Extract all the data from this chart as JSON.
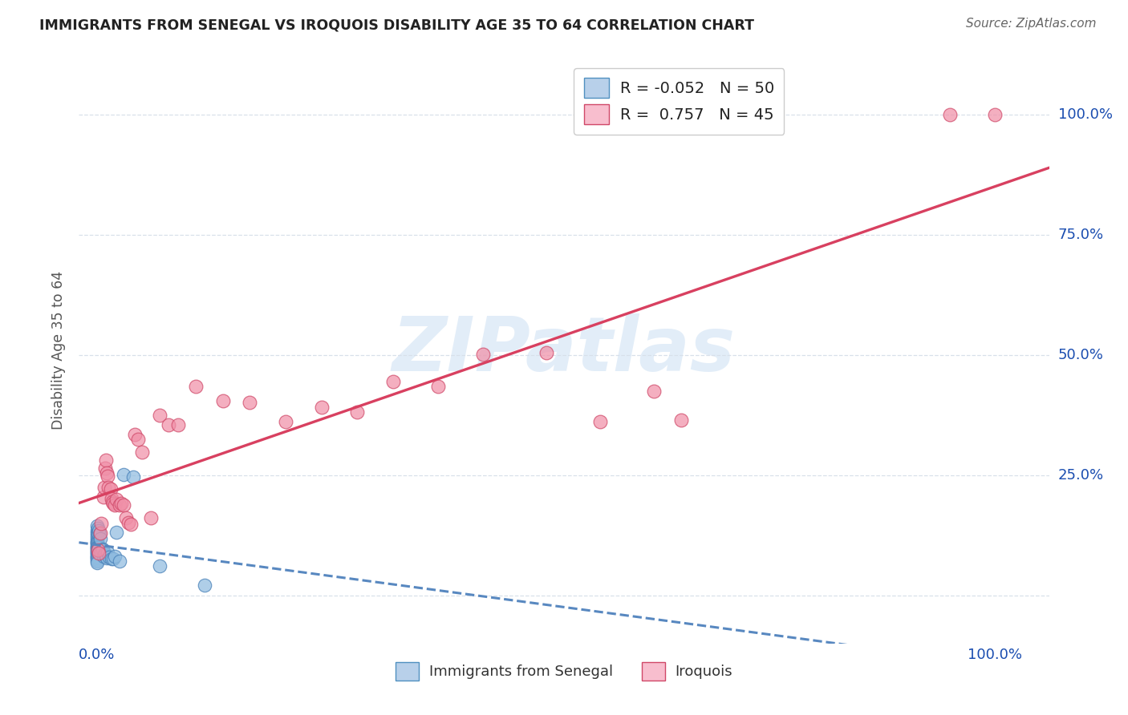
{
  "title": "IMMIGRANTS FROM SENEGAL VS IROQUOIS DISABILITY AGE 35 TO 64 CORRELATION CHART",
  "source": "Source: ZipAtlas.com",
  "ylabel": "Disability Age 35 to 64",
  "xlim": [
    -0.02,
    1.06
  ],
  "ylim": [
    -0.1,
    1.12
  ],
  "series1_label": "Immigrants from Senegal",
  "series2_label": "Iroquois",
  "series1_color": "#90bce0",
  "series2_color": "#f090a8",
  "series1_edge_color": "#4880b8",
  "series2_edge_color": "#d04868",
  "trend1_color": "#5888c0",
  "trend2_color": "#d84060",
  "R1": -0.052,
  "N1": 50,
  "R2": 0.757,
  "N2": 45,
  "watermark": "ZIPatlas",
  "senegal_x": [
    0.0,
    0.0,
    0.0,
    0.0,
    0.0,
    0.0,
    0.0,
    0.0,
    0.0,
    0.0,
    0.0,
    0.0,
    0.0,
    0.0,
    0.0,
    0.0,
    0.0,
    0.0,
    0.0,
    0.0,
    0.0,
    0.0,
    0.0,
    0.0,
    0.001,
    0.001,
    0.002,
    0.002,
    0.003,
    0.004,
    0.005,
    0.005,
    0.006,
    0.006,
    0.007,
    0.008,
    0.009,
    0.01,
    0.011,
    0.012,
    0.014,
    0.016,
    0.018,
    0.02,
    0.022,
    0.025,
    0.03,
    0.04,
    0.07,
    0.12
  ],
  "senegal_y": [
    0.145,
    0.135,
    0.13,
    0.125,
    0.12,
    0.115,
    0.112,
    0.11,
    0.108,
    0.105,
    0.102,
    0.1,
    0.098,
    0.095,
    0.093,
    0.09,
    0.088,
    0.085,
    0.082,
    0.08,
    0.078,
    0.075,
    0.072,
    0.068,
    0.14,
    0.13,
    0.135,
    0.1,
    0.128,
    0.118,
    0.092,
    0.092,
    0.097,
    0.095,
    0.082,
    0.087,
    0.086,
    0.082,
    0.078,
    0.09,
    0.08,
    0.077,
    0.077,
    0.082,
    0.132,
    0.072,
    0.252,
    0.247,
    0.062,
    0.022
  ],
  "iroquois_x": [
    0.001,
    0.002,
    0.004,
    0.005,
    0.007,
    0.008,
    0.009,
    0.01,
    0.011,
    0.012,
    0.013,
    0.015,
    0.016,
    0.017,
    0.018,
    0.02,
    0.022,
    0.025,
    0.027,
    0.03,
    0.032,
    0.035,
    0.038,
    0.042,
    0.046,
    0.05,
    0.06,
    0.07,
    0.08,
    0.09,
    0.11,
    0.14,
    0.17,
    0.21,
    0.25,
    0.29,
    0.33,
    0.38,
    0.43,
    0.5,
    0.56,
    0.62,
    0.65,
    0.95,
    1.0
  ],
  "iroquois_y": [
    0.095,
    0.088,
    0.13,
    0.15,
    0.205,
    0.225,
    0.265,
    0.282,
    0.255,
    0.248,
    0.225,
    0.222,
    0.202,
    0.195,
    0.192,
    0.188,
    0.2,
    0.188,
    0.192,
    0.188,
    0.162,
    0.152,
    0.148,
    0.335,
    0.325,
    0.298,
    0.162,
    0.375,
    0.355,
    0.355,
    0.435,
    0.405,
    0.402,
    0.362,
    0.392,
    0.382,
    0.445,
    0.435,
    0.502,
    0.505,
    0.362,
    0.425,
    0.365,
    1.0,
    1.0
  ]
}
